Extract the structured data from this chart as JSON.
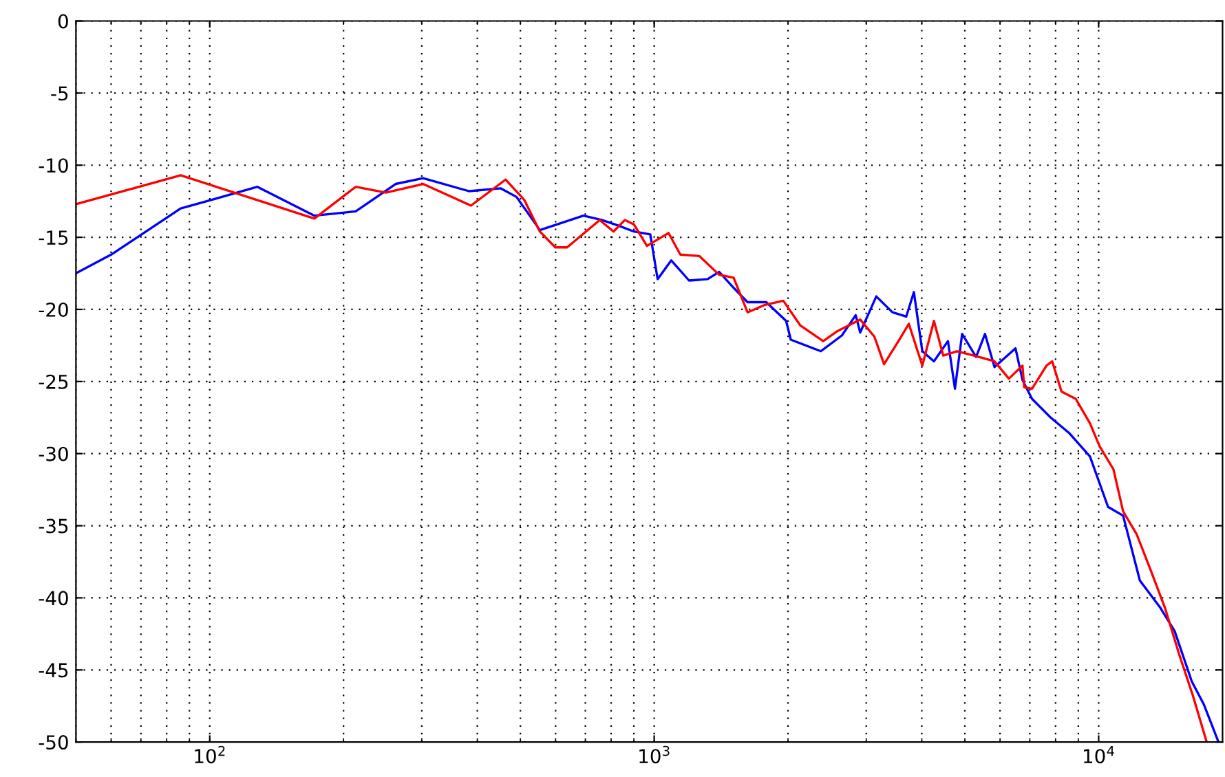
{
  "chart_data": {
    "type": "line",
    "log": "x",
    "grid": true,
    "xlim": [
      50,
      19000
    ],
    "ylim": [
      -50,
      0
    ],
    "xticks": [
      {
        "value": 100,
        "label": "10$^{2}$"
      },
      {
        "value": 1000,
        "label": "10$^{3}$"
      },
      {
        "value": 10000,
        "label": "10$^{4}$"
      }
    ],
    "yticks": [
      -50,
      -45,
      -40,
      -35,
      -30,
      -25,
      -20,
      -15,
      -10,
      -5,
      0
    ],
    "series": [
      {
        "color": "#0000ff",
        "x": [
          50,
          60,
          86,
          101,
          128,
          172,
          213,
          262,
          302,
          383,
          451,
          490,
          553,
          693,
          762,
          833,
          900,
          980,
          1018,
          1092,
          1198,
          1319,
          1400,
          1509,
          1622,
          1787,
          1981,
          2029,
          2371,
          2645,
          2840,
          2907,
          3160,
          3436,
          3690,
          3840,
          3918,
          4011,
          4260,
          4580,
          4750,
          4930,
          5300,
          5550,
          5830,
          6500,
          6740,
          7080,
          7800,
          8600,
          9560,
          10500,
          11350,
          12380,
          13770,
          14820,
          16200,
          17250,
          18550
        ],
        "values": [
          -17.5,
          -16.2,
          -13.0,
          -12.4,
          -11.5,
          -13.5,
          -13.2,
          -11.3,
          -10.9,
          -11.8,
          -11.6,
          -12.2,
          -14.5,
          -13.5,
          -13.8,
          -14.2,
          -14.6,
          -14.8,
          -17.9,
          -16.6,
          -18.0,
          -17.9,
          -17.4,
          -18.5,
          -19.5,
          -19.5,
          -20.8,
          -22.1,
          -22.9,
          -21.8,
          -20.4,
          -21.6,
          -19.1,
          -20.2,
          -20.5,
          -18.8,
          -20.7,
          -22.9,
          -23.6,
          -22.2,
          -25.5,
          -21.7,
          -23.3,
          -21.7,
          -24.0,
          -22.7,
          -24.9,
          -26.2,
          -27.5,
          -28.6,
          -30.2,
          -33.7,
          -34.3,
          -38.8,
          -40.7,
          -42.3,
          -45.8,
          -47.4,
          -49.9
        ]
      },
      {
        "color": "#ff0000",
        "x": [
          50,
          86,
          172,
          213,
          249,
          302,
          387,
          463,
          510,
          553,
          599,
          637,
          754,
          810,
          859,
          900,
          963,
          1077,
          1145,
          1264,
          1400,
          1509,
          1622,
          1769,
          1952,
          2130,
          2400,
          2585,
          2907,
          3130,
          3290,
          3560,
          3740,
          4011,
          4260,
          4470,
          4800,
          5240,
          5830,
          6280,
          6740,
          6800,
          7080,
          7630,
          7860,
          8250,
          8880,
          9560,
          10050,
          10800,
          11350,
          12180,
          13100,
          14100,
          15170,
          16300,
          17500
        ],
        "values": [
          -12.7,
          -10.7,
          -13.7,
          -11.5,
          -11.9,
          -11.3,
          -12.8,
          -11.0,
          -12.4,
          -14.6,
          -15.7,
          -15.7,
          -13.8,
          -14.6,
          -13.8,
          -14.1,
          -15.6,
          -14.7,
          -16.2,
          -16.3,
          -17.6,
          -17.8,
          -20.2,
          -19.7,
          -19.4,
          -21.1,
          -22.2,
          -21.5,
          -20.7,
          -21.9,
          -23.8,
          -22.1,
          -21.0,
          -23.9,
          -20.8,
          -23.2,
          -22.9,
          -23.2,
          -23.6,
          -24.8,
          -23.9,
          -25.4,
          -25.5,
          -23.9,
          -23.6,
          -25.7,
          -26.2,
          -27.9,
          -29.5,
          -31.1,
          -34.0,
          -35.6,
          -38.1,
          -40.7,
          -43.9,
          -46.8,
          -50.0
        ]
      }
    ]
  }
}
